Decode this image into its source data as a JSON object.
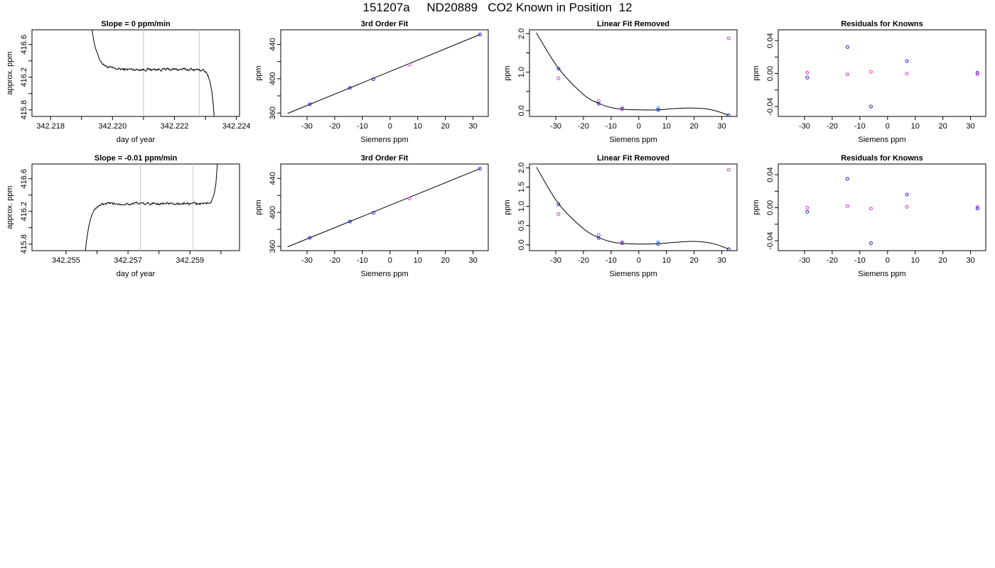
{
  "page": {
    "title": "151207a     ND20889   CO2 Known in Position  12"
  },
  "colors": {
    "line": "#000000",
    "vline": "#c8c8c8",
    "known_blue": "#1f1fd6",
    "known_magenta": "#d43cd4",
    "known_cyan": "#2aa8d8"
  },
  "chart_data": [
    {
      "id": "r1-trace",
      "type": "line",
      "title": "Slope =  0  ppm/min",
      "xlabel": "day of year",
      "ylabel": "approx. ppm",
      "xlim": [
        342.2174,
        342.2241
      ],
      "ylim": [
        415.72,
        416.78
      ],
      "xticks": [
        342.218,
        342.219,
        342.22,
        342.221,
        342.222,
        342.223,
        342.224
      ],
      "xtick_labels": [
        "342.218",
        "",
        "342.220",
        "",
        "342.222",
        "",
        "342.224"
      ],
      "yticks": [
        415.8,
        416.0,
        416.2,
        416.4,
        416.6
      ],
      "ytick_labels": [
        "415.8",
        "",
        "416.2",
        "",
        "416.6"
      ],
      "vlines": [
        342.221,
        342.2228
      ],
      "window": [
        342.2193,
        342.2233
      ],
      "rise": "left",
      "start": 416.9,
      "plateau": 416.295,
      "end": 415.6,
      "noise": 0.018
    },
    {
      "id": "r1-fit",
      "type": "line",
      "title": "3rd Order Fit",
      "xlabel": "Siemens ppm",
      "ylabel": "ppm",
      "xlim": [
        -39.5,
        35.5
      ],
      "ylim": [
        356,
        457
      ],
      "xticks": [
        -30,
        -20,
        -10,
        0,
        10,
        20,
        30
      ],
      "xtick_labels": [
        "-30",
        "-20",
        "-10",
        "0",
        "10",
        "20",
        "30"
      ],
      "yticks": [
        360,
        380,
        400,
        420,
        440
      ],
      "ytick_labels": [
        "360",
        "",
        "400",
        "",
        "440"
      ],
      "curve": {
        "x0": -37,
        "x1": 32.5,
        "y0": 359.5,
        "y1": 451.5
      },
      "points": [
        {
          "x": -29.0,
          "y": 370.2,
          "c": "blue"
        },
        {
          "x": -14.5,
          "y": 389.2,
          "c": "blue"
        },
        {
          "x": -6.0,
          "y": 399.5,
          "c": "blue"
        },
        {
          "x": 7.0,
          "y": 416.3,
          "c": "magenta"
        },
        {
          "x": 32.5,
          "y": 451.5,
          "c": "blue"
        }
      ]
    },
    {
      "id": "r1-lin",
      "type": "scatter",
      "title": "Linear Fit Removed",
      "xlabel": "Siemens ppm",
      "ylabel": "ppm",
      "xlim": [
        -39.5,
        35.5
      ],
      "ylim": [
        -0.15,
        2.1
      ],
      "xticks": [
        -30,
        -20,
        -10,
        0,
        10,
        20,
        30
      ],
      "xtick_labels": [
        "-30",
        "-20",
        "-10",
        "0",
        "10",
        "20",
        "30"
      ],
      "yticks": [
        0.0,
        0.5,
        1.0,
        1.5,
        2.0
      ],
      "ytick_labels": [
        "0.0",
        "",
        "1.0",
        "",
        "2.0"
      ],
      "curve": [
        [
          -37,
          2.02
        ],
        [
          -29,
          1.1
        ],
        [
          -20,
          0.42
        ],
        [
          -14.5,
          0.19
        ],
        [
          -10,
          0.08
        ],
        [
          -6,
          0.04
        ],
        [
          0,
          0.02
        ],
        [
          7,
          0.02
        ],
        [
          12,
          0.05
        ],
        [
          18,
          0.07
        ],
        [
          24,
          0.05
        ],
        [
          28,
          -0.01
        ],
        [
          32.5,
          -0.12
        ]
      ],
      "points": [
        {
          "x": -29,
          "y": 1.09,
          "c": "blue"
        },
        {
          "x": -29,
          "y": 0.84,
          "c": "magenta"
        },
        {
          "x": -14.5,
          "y": 0.25,
          "c": "magenta"
        },
        {
          "x": -14.5,
          "y": 0.18,
          "c": "blue"
        },
        {
          "x": -6,
          "y": 0.06,
          "c": "blue"
        },
        {
          "x": -6,
          "y": 0.04,
          "c": "magenta"
        },
        {
          "x": 7,
          "y": 0.07,
          "c": "cyan"
        },
        {
          "x": 7,
          "y": 0.02,
          "c": "blue"
        },
        {
          "x": 32.5,
          "y": 1.88,
          "c": "magenta"
        },
        {
          "x": 32.5,
          "y": -0.12,
          "c": "blue"
        }
      ]
    },
    {
      "id": "r1-res",
      "type": "scatter",
      "title": "Residuals for Knowns",
      "xlabel": "Siemens ppm",
      "ylabel": "ppm",
      "xlim": [
        -39.5,
        35.5
      ],
      "ylim": [
        -0.052,
        0.053
      ],
      "xticks": [
        -30,
        -20,
        -10,
        0,
        10,
        20,
        30
      ],
      "xtick_labels": [
        "-30",
        "-20",
        "-10",
        "0",
        "10",
        "20",
        "30"
      ],
      "yticks": [
        -0.04,
        -0.02,
        0.0,
        0.02,
        0.04
      ],
      "ytick_labels": [
        "-0.04",
        "",
        "0.00",
        "",
        "0.04"
      ],
      "points": [
        {
          "x": -29,
          "y": 0.001,
          "c": "magenta"
        },
        {
          "x": -29,
          "y": -0.005,
          "c": "blue"
        },
        {
          "x": -14.5,
          "y": 0.032,
          "c": "blue"
        },
        {
          "x": -14.5,
          "y": -0.001,
          "c": "magenta"
        },
        {
          "x": -6,
          "y": -0.04,
          "c": "blue"
        },
        {
          "x": -6,
          "y": 0.002,
          "c": "magenta"
        },
        {
          "x": 7,
          "y": 0.015,
          "c": "blue"
        },
        {
          "x": 7,
          "y": 0.0,
          "c": "magenta"
        },
        {
          "x": 32.5,
          "y": 0.001,
          "c": "blue"
        },
        {
          "x": 32.5,
          "y": -0.001,
          "c": "magenta"
        }
      ]
    },
    {
      "id": "r2-trace",
      "type": "line",
      "title": "Slope =  -0.01  ppm/min",
      "xlabel": "day of year",
      "ylabel": "approx. ppm",
      "xlim": [
        342.2539,
        342.2606
      ],
      "ylim": [
        415.72,
        416.78
      ],
      "xticks": [
        342.255,
        342.256,
        342.257,
        342.258,
        342.259,
        342.26
      ],
      "xtick_labels": [
        "342.255",
        "",
        "342.257",
        "",
        "342.259",
        ""
      ],
      "yticks": [
        415.8,
        416.0,
        416.2,
        416.4,
        416.6
      ],
      "ytick_labels": [
        "415.8",
        "",
        "416.2",
        "",
        "416.6"
      ],
      "vlines": [
        342.2574,
        342.2591
      ],
      "window": [
        342.2556,
        342.2599
      ],
      "rise": "right",
      "start": 415.6,
      "plateau": 416.295,
      "end": 416.9,
      "noise": 0.018
    },
    {
      "id": "r2-fit",
      "type": "line",
      "title": "3rd Order Fit",
      "xlabel": "Siemens ppm",
      "ylabel": "ppm",
      "xlim": [
        -39.5,
        35.5
      ],
      "ylim": [
        355,
        457
      ],
      "xticks": [
        -30,
        -20,
        -10,
        0,
        10,
        20,
        30
      ],
      "xtick_labels": [
        "-30",
        "-20",
        "-10",
        "0",
        "10",
        "20",
        "30"
      ],
      "yticks": [
        360,
        380,
        400,
        420,
        440
      ],
      "ytick_labels": [
        "360",
        "",
        "400",
        "",
        "440"
      ],
      "curve": {
        "x0": -37,
        "x1": 32.5,
        "y0": 359.5,
        "y1": 451.5
      },
      "points": [
        {
          "x": -29.0,
          "y": 370.2,
          "c": "blue"
        },
        {
          "x": -14.5,
          "y": 389.2,
          "c": "blue"
        },
        {
          "x": -6.0,
          "y": 399.5,
          "c": "blue"
        },
        {
          "x": 7.0,
          "y": 416.3,
          "c": "magenta"
        },
        {
          "x": 32.5,
          "y": 451.5,
          "c": "blue"
        }
      ]
    },
    {
      "id": "r2-lin",
      "type": "scatter",
      "title": "Linear Fit Removed",
      "xlabel": "Siemens ppm",
      "ylabel": "ppm",
      "xlim": [
        -39.5,
        35.5
      ],
      "ylim": [
        -0.15,
        2.1
      ],
      "xticks": [
        -30,
        -20,
        -10,
        0,
        10,
        20,
        30
      ],
      "xtick_labels": [
        "-30",
        "-20",
        "-10",
        "0",
        "10",
        "20",
        "30"
      ],
      "yticks": [
        0.0,
        0.5,
        1.0,
        1.5,
        2.0
      ],
      "ytick_labels": [
        "0.0",
        "0.5",
        "1.0",
        "1.5",
        "2.0"
      ],
      "curve": [
        [
          -37,
          2.02
        ],
        [
          -29,
          1.07
        ],
        [
          -20,
          0.42
        ],
        [
          -14.5,
          0.19
        ],
        [
          -10,
          0.08
        ],
        [
          -6,
          0.04
        ],
        [
          0,
          0.02
        ],
        [
          7,
          0.03
        ],
        [
          12,
          0.06
        ],
        [
          19,
          0.09
        ],
        [
          24,
          0.07
        ],
        [
          28,
          0.01
        ],
        [
          32.5,
          -0.11
        ]
      ],
      "points": [
        {
          "x": -29,
          "y": 1.05,
          "c": "blue"
        },
        {
          "x": -29,
          "y": 0.8,
          "c": "magenta"
        },
        {
          "x": -14.5,
          "y": 0.25,
          "c": "magenta"
        },
        {
          "x": -14.5,
          "y": 0.18,
          "c": "blue"
        },
        {
          "x": -6,
          "y": 0.06,
          "c": "blue"
        },
        {
          "x": -6,
          "y": 0.04,
          "c": "magenta"
        },
        {
          "x": 7,
          "y": 0.07,
          "c": "cyan"
        },
        {
          "x": 7,
          "y": 0.02,
          "c": "blue"
        },
        {
          "x": 32.5,
          "y": 1.95,
          "c": "magenta"
        },
        {
          "x": 32.5,
          "y": -0.11,
          "c": "blue"
        }
      ]
    },
    {
      "id": "r2-res",
      "type": "scatter",
      "title": "Residuals for Knowns",
      "xlabel": "Siemens ppm",
      "ylabel": "ppm",
      "xlim": [
        -39.5,
        35.5
      ],
      "ylim": [
        -0.052,
        0.053
      ],
      "xticks": [
        -30,
        -20,
        -10,
        0,
        10,
        20,
        30
      ],
      "xtick_labels": [
        "-30",
        "-20",
        "-10",
        "0",
        "10",
        "20",
        "30"
      ],
      "yticks": [
        -0.04,
        -0.02,
        0.0,
        0.02,
        0.04
      ],
      "ytick_labels": [
        "-0.04",
        "",
        "0.00",
        "",
        "0.04"
      ],
      "points": [
        {
          "x": -29,
          "y": 0.0,
          "c": "magenta"
        },
        {
          "x": -29,
          "y": -0.005,
          "c": "blue"
        },
        {
          "x": -14.5,
          "y": 0.035,
          "c": "blue"
        },
        {
          "x": -14.5,
          "y": 0.002,
          "c": "magenta"
        },
        {
          "x": -6,
          "y": -0.043,
          "c": "blue"
        },
        {
          "x": -6,
          "y": -0.001,
          "c": "magenta"
        },
        {
          "x": 7,
          "y": 0.016,
          "c": "blue"
        },
        {
          "x": 7,
          "y": 0.001,
          "c": "magenta"
        },
        {
          "x": 32.5,
          "y": 0.001,
          "c": "magenta"
        },
        {
          "x": 32.5,
          "y": -0.001,
          "c": "blue"
        }
      ]
    }
  ]
}
